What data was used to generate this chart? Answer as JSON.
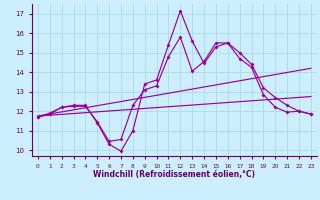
{
  "xlabel": "Windchill (Refroidissement éolien,°C)",
  "bg_color": "#cceeff",
  "grid_color": "#aadddd",
  "line_color": "#990099",
  "tick_color": "#660066",
  "xlim": [
    -0.5,
    23.5
  ],
  "ylim": [
    9.7,
    17.5
  ],
  "xticks": [
    0,
    1,
    2,
    3,
    4,
    5,
    6,
    7,
    8,
    9,
    10,
    11,
    12,
    13,
    14,
    15,
    16,
    17,
    18,
    19,
    20,
    21,
    22,
    23
  ],
  "yticks": [
    10,
    11,
    12,
    13,
    14,
    15,
    16,
    17
  ],
  "line1_x": [
    0,
    1,
    2,
    3,
    4,
    5,
    6,
    7,
    8,
    9,
    10,
    11,
    12,
    13,
    14,
    15,
    16,
    17,
    18,
    19,
    20,
    21,
    22,
    23
  ],
  "line1_y": [
    11.7,
    11.9,
    12.2,
    12.3,
    12.3,
    11.4,
    10.3,
    9.95,
    11.0,
    13.4,
    13.6,
    15.4,
    17.15,
    15.6,
    14.45,
    15.3,
    15.5,
    14.7,
    14.25,
    12.85,
    12.2,
    11.95,
    12.0,
    11.85
  ],
  "line2_x": [
    0,
    1,
    2,
    3,
    4,
    5,
    6,
    7,
    8,
    9,
    10,
    11,
    12,
    13,
    14,
    15,
    16,
    17,
    18,
    19,
    20,
    21,
    22,
    23
  ],
  "line2_y": [
    11.7,
    11.85,
    12.2,
    12.25,
    12.25,
    11.45,
    10.45,
    10.55,
    12.3,
    13.1,
    13.3,
    14.8,
    15.8,
    14.05,
    14.55,
    15.5,
    15.5,
    15.0,
    14.4,
    13.2,
    12.7,
    12.3,
    12.0,
    11.85
  ],
  "trend1_x": [
    0,
    23
  ],
  "trend1_y": [
    11.75,
    14.2
  ],
  "trend2_x": [
    0,
    23
  ],
  "trend2_y": [
    11.75,
    12.75
  ]
}
